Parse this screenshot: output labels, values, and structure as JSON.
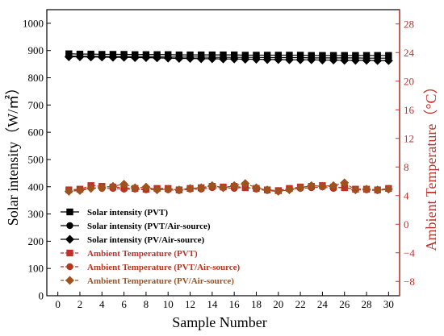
{
  "chart_data": {
    "type": "line",
    "xlabel": "Sample Number",
    "ylabel": "Solar intensity（W/㎡）",
    "y2label": "Ambient Temperature（°C）",
    "xlim": [
      -1,
      31
    ],
    "ylim": [
      0,
      1050
    ],
    "y2lim": [
      -10,
      30
    ],
    "x_ticks": [
      0,
      2,
      4,
      6,
      8,
      10,
      12,
      14,
      16,
      18,
      20,
      22,
      24,
      26,
      28,
      30
    ],
    "y_ticks": [
      0,
      100,
      200,
      300,
      400,
      500,
      600,
      700,
      800,
      900,
      1000
    ],
    "y2_ticks": [
      -8,
      -4,
      0,
      4,
      8,
      12,
      16,
      20,
      24,
      28
    ],
    "grid": false,
    "legend_position": "bottom-left",
    "x": [
      1,
      2,
      3,
      4,
      5,
      6,
      7,
      8,
      9,
      10,
      11,
      12,
      13,
      14,
      15,
      16,
      17,
      18,
      19,
      20,
      21,
      22,
      23,
      24,
      25,
      26,
      27,
      28,
      29,
      30
    ],
    "series": [
      {
        "name": "Solar intensity (PVT)",
        "axis": "left",
        "color": "#000000",
        "marker": "square",
        "values": [
          888,
          887,
          887,
          886,
          886,
          886,
          885,
          885,
          885,
          885,
          884,
          884,
          884,
          884,
          884,
          884,
          883,
          883,
          883,
          883,
          883,
          883,
          882,
          882,
          882,
          882,
          882,
          882,
          882,
          882
        ]
      },
      {
        "name": "Solar intensity (PVT/Air-source)",
        "axis": "left",
        "color": "#000000",
        "marker": "circle",
        "values": [
          880,
          879,
          879,
          878,
          878,
          878,
          877,
          877,
          877,
          876,
          876,
          876,
          876,
          875,
          875,
          875,
          875,
          875,
          874,
          874,
          874,
          874,
          873,
          873,
          873,
          873,
          873,
          872,
          872,
          872
        ]
      },
      {
        "name": "Solar intensity (PV/Air-source)",
        "axis": "left",
        "color": "#000000",
        "marker": "diamond",
        "values": [
          877,
          877,
          876,
          876,
          875,
          875,
          874,
          874,
          873,
          872,
          871,
          871,
          870,
          870,
          869,
          869,
          868,
          868,
          867,
          867,
          866,
          866,
          866,
          865,
          865,
          864,
          864,
          864,
          863,
          863
        ]
      },
      {
        "name": "Ambient Temperature (PVT)",
        "axis": "right",
        "color": "#c0302a",
        "marker": "square",
        "values": [
          4.8,
          4.9,
          5.4,
          5.3,
          5.2,
          5.1,
          5.0,
          4.9,
          5.0,
          5.0,
          4.8,
          5.0,
          5.1,
          5.3,
          5.2,
          5.3,
          5.1,
          5.0,
          4.8,
          4.7,
          5.0,
          5.2,
          5.3,
          5.4,
          5.2,
          5.1,
          4.9,
          4.9,
          4.8,
          5.0
        ]
      },
      {
        "name": "Ambient Temperature (PVT/Air-source)",
        "axis": "right",
        "color": "#b5361f",
        "marker": "circle",
        "values": [
          4.7,
          4.8,
          5.1,
          5.0,
          5.0,
          4.9,
          4.9,
          4.8,
          4.9,
          4.8,
          4.7,
          4.9,
          4.9,
          5.1,
          5.1,
          5.0,
          5.2,
          4.9,
          4.7,
          4.6,
          4.9,
          5.0,
          5.1,
          5.2,
          5.0,
          5.2,
          4.8,
          4.8,
          4.7,
          4.9
        ]
      },
      {
        "name": "Ambient Temperature (PV/Air-source)",
        "axis": "right",
        "color": "#a0521e",
        "marker": "diamond",
        "values": [
          4.6,
          4.7,
          5.0,
          5.1,
          5.3,
          5.6,
          5.1,
          5.2,
          4.8,
          4.9,
          4.8,
          5.0,
          5.1,
          5.4,
          5.1,
          5.4,
          5.7,
          5.1,
          4.8,
          4.6,
          4.8,
          5.1,
          5.4,
          5.3,
          5.4,
          5.8,
          4.8,
          4.9,
          4.8,
          4.9
        ]
      }
    ]
  }
}
